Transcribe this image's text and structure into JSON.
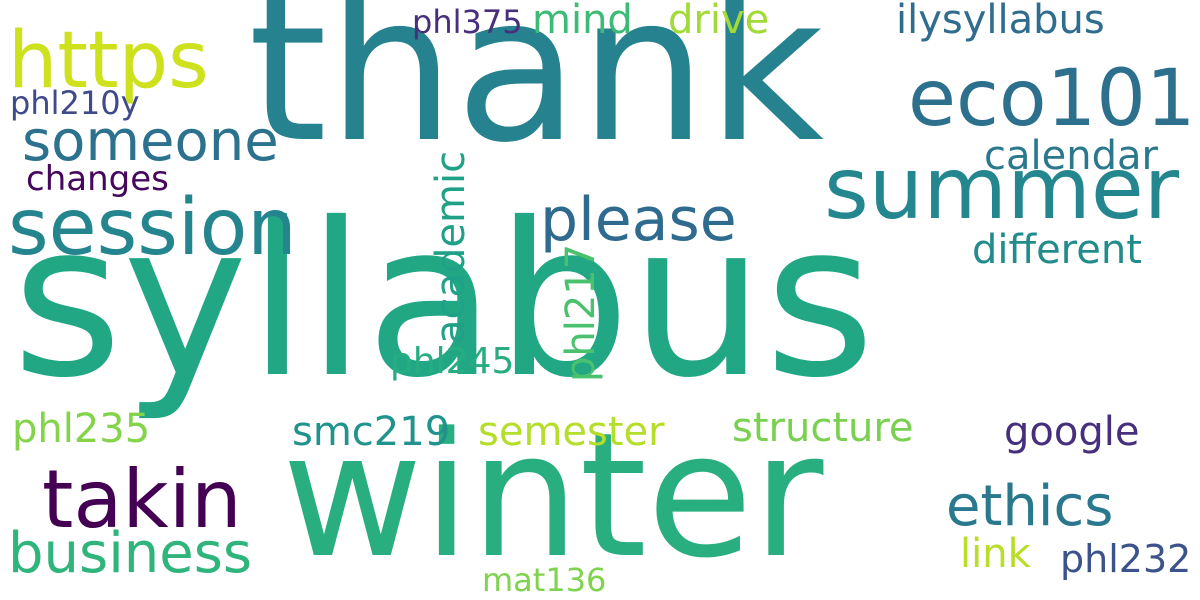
{
  "words": {
    "syllabus": {
      "text": "syllabus",
      "color": "#22a785"
    },
    "thank": {
      "text": "thank",
      "color": "#26828e"
    },
    "winter": {
      "text": "winter",
      "color": "#29af7f"
    },
    "summer": {
      "text": "summer",
      "color": "#24868e"
    },
    "session": {
      "text": "session",
      "color": "#25858e"
    },
    "https": {
      "text": "https",
      "color": "#cde11d"
    },
    "eco101": {
      "text": "eco101",
      "color": "#2d708e"
    },
    "someone": {
      "text": "someone",
      "color": "#2c728e"
    },
    "please": {
      "text": "please",
      "color": "#2f6b8e"
    },
    "takin": {
      "text": "takin",
      "color": "#440154"
    },
    "business": {
      "text": "business",
      "color": "#2fb47c"
    },
    "ethics": {
      "text": "ethics",
      "color": "#2a788e"
    },
    "academic": {
      "text": "academic",
      "color": "#1fa187"
    },
    "mind": {
      "text": "mind",
      "color": "#3bbb75"
    },
    "drive": {
      "text": "drive",
      "color": "#a2da37"
    },
    "ilysyllabus": {
      "text": "ilysyllabus",
      "color": "#2f6c8e"
    },
    "calendar": {
      "text": "calendar",
      "color": "#2a788e"
    },
    "different": {
      "text": "different",
      "color": "#228c8d"
    },
    "phl217": {
      "text": "phl217",
      "color": "#4ac16d"
    },
    "phl210y": {
      "text": "phl210y",
      "color": "#3e4a89"
    },
    "changes": {
      "text": "changes",
      "color": "#46085c"
    },
    "phl375": {
      "text": "phl375",
      "color": "#472f7d"
    },
    "phl245": {
      "text": "phl245",
      "color": "#27ad81"
    },
    "phl235": {
      "text": "phl235",
      "color": "#84d44b"
    },
    "smc219": {
      "text": "smc219",
      "color": "#20938c"
    },
    "semester": {
      "text": "semester",
      "color": "#b5de2b"
    },
    "structure": {
      "text": "structure",
      "color": "#7ad151"
    },
    "google": {
      "text": "google",
      "color": "#46307e"
    },
    "link": {
      "text": "link",
      "color": "#b8de29"
    },
    "phl232": {
      "text": "phl232",
      "color": "#3b528b"
    },
    "mat136": {
      "text": "mat136",
      "color": "#7fd34e"
    }
  }
}
